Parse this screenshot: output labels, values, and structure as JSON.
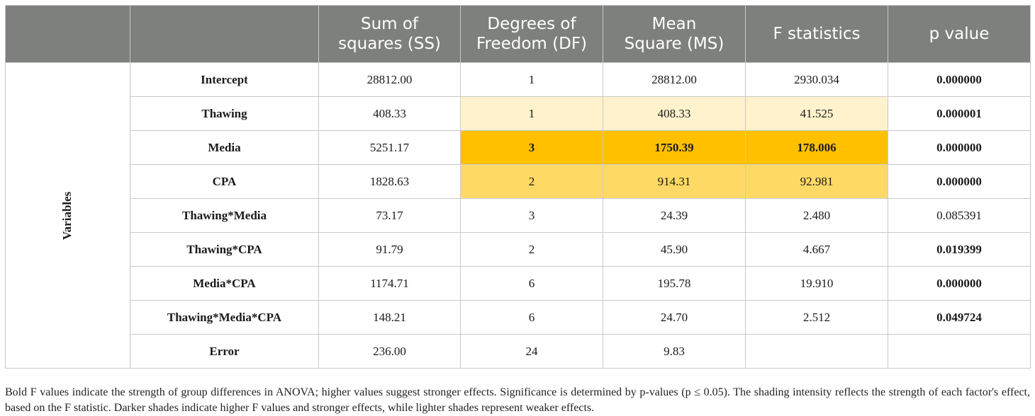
{
  "table": {
    "headers": [
      "",
      "",
      "Sum of\nsquares (SS)",
      "Degrees of\nFreedom (DF)",
      "Mean\nSquare (MS)",
      "F statistics",
      "p value"
    ],
    "group_label": "Variables",
    "rows": [
      {
        "label": "Intercept",
        "ss": "28812.00",
        "df": "1",
        "ms": "28812.00",
        "f": "2930.034",
        "p": "0.000000"
      },
      {
        "label": "Thawing",
        "ss": "408.33",
        "df": "1",
        "ms": "408.33",
        "f": "41.525",
        "p": "0.000001"
      },
      {
        "label": "Media",
        "ss": "5251.17",
        "df": "3",
        "ms": "1750.39",
        "f": "178.006",
        "p": "0.000000"
      },
      {
        "label": "CPA",
        "ss": "1828.63",
        "df": "2",
        "ms": "914.31",
        "f": "92.981",
        "p": "0.000000"
      },
      {
        "label": "Thawing*Media",
        "ss": "73.17",
        "df": "3",
        "ms": "24.39",
        "f": "2.480",
        "p": "0.085391"
      },
      {
        "label": "Thawing*CPA",
        "ss": "91.79",
        "df": "2",
        "ms": "45.90",
        "f": "4.667",
        "p": "0.019399"
      },
      {
        "label": "Media*CPA",
        "ss": "1174.71",
        "df": "6",
        "ms": "195.78",
        "f": "19.910",
        "p": "0.000000"
      },
      {
        "label": "Thawing*Media*CPA",
        "ss": "148.21",
        "df": "6",
        "ms": "24.70",
        "f": "2.512",
        "p": "0.049724"
      },
      {
        "label": "Error",
        "ss": "236.00",
        "df": "24",
        "ms": "9.83",
        "f": "",
        "p": ""
      }
    ]
  },
  "colors": {
    "header_bg": "#7e807d",
    "shade_light": "#fff2cc",
    "shade_mid": "#ffd966",
    "shade_dark": "#ffc000"
  },
  "caption": "Bold F values indicate the strength of group differences in ANOVA; higher values suggest stronger effects. Significance is determined by p-values (p ≤ 0.05). The shading intensity reflects the strength of each factor's effect, based on the F statistic. Darker shades indicate higher F values and stronger effects, while lighter shades represent weaker effects."
}
